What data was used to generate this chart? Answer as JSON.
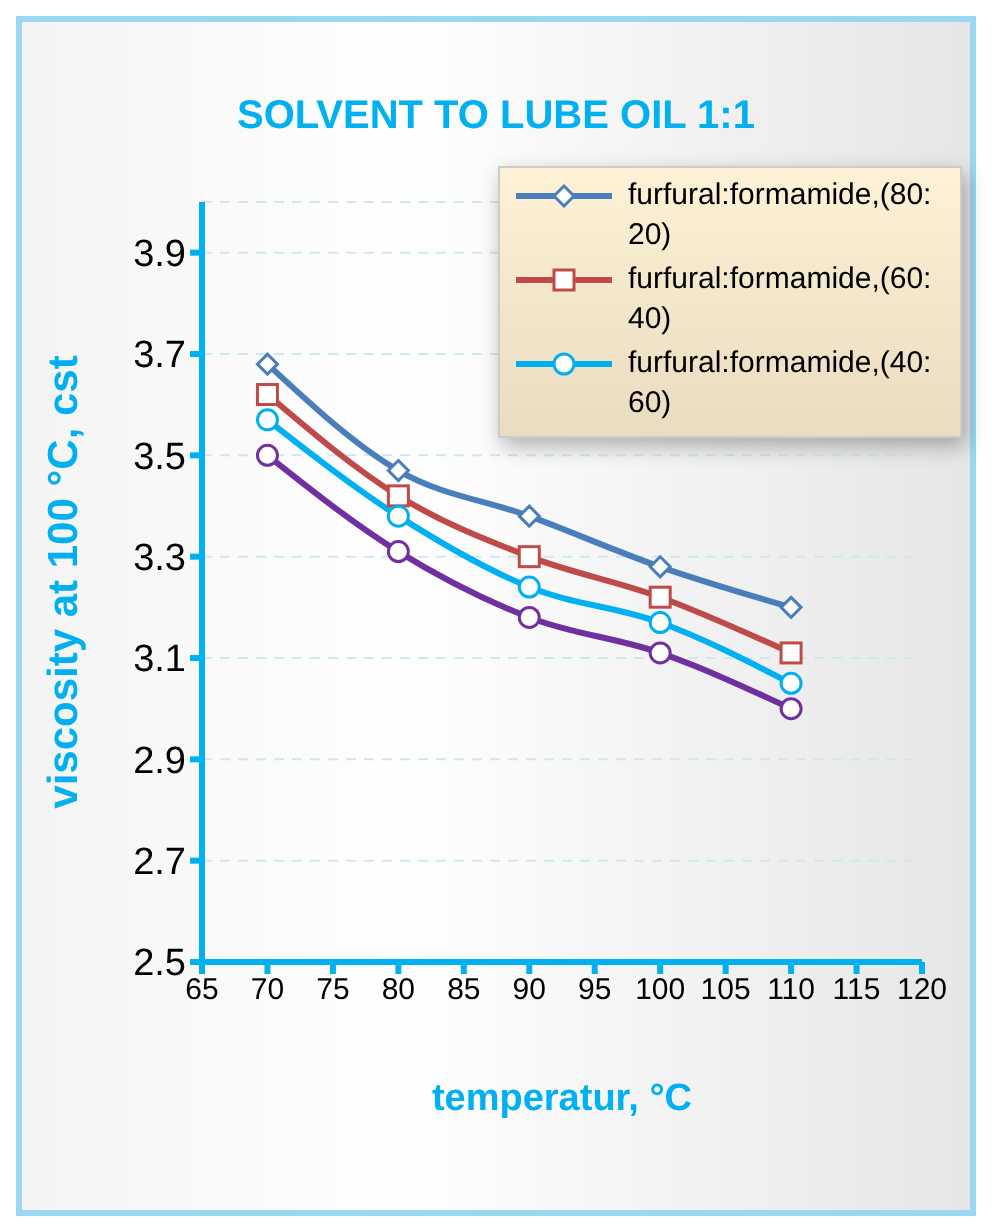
{
  "chart_data": {
    "type": "line",
    "title": "SOLVENT TO LUBE OIL 1:1",
    "xlabel": "temperatur, °C",
    "ylabel": "viscosity at 100 °C, cst",
    "x": [
      70,
      80,
      90,
      100,
      110
    ],
    "series": [
      {
        "name": "furfural:formamide,(80:20)",
        "color": "#4a7ebb",
        "marker": "diamond",
        "values": [
          3.68,
          3.47,
          3.38,
          3.28,
          3.2
        ]
      },
      {
        "name": "furfural:formamide,(60:40)",
        "color": "#be4b48",
        "marker": "square",
        "values": [
          3.62,
          3.42,
          3.3,
          3.22,
          3.11
        ]
      },
      {
        "name": "furfural:formamide,(40:60)",
        "color": "#00b0f0",
        "marker": "circle",
        "values": [
          3.57,
          3.38,
          3.24,
          3.17,
          3.05
        ]
      },
      {
        "color": "#7030a0",
        "marker": "circle",
        "values": [
          3.5,
          3.31,
          3.18,
          3.11,
          3.0
        ]
      }
    ],
    "xlim": [
      65,
      120
    ],
    "xticks": [
      65,
      70,
      75,
      80,
      85,
      90,
      95,
      100,
      105,
      110,
      115,
      120
    ],
    "ylim": [
      2.5,
      4.0
    ],
    "yticks": [
      2.5,
      2.7,
      2.9,
      3.1,
      3.3,
      3.5,
      3.7,
      3.9
    ],
    "grid": "y",
    "legend": "top right",
    "line_style": "solid"
  }
}
